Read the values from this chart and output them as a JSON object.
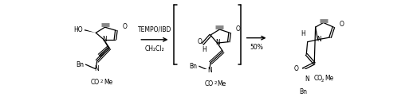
{
  "colors": {
    "line": "#000000",
    "bg": "#ffffff"
  },
  "figwidth": 5.18,
  "figheight": 1.22,
  "dpi": 100,
  "arrow1_label_top": "TEMPO/IBD",
  "arrow1_label_bot": "CH₂Cl₂",
  "arrow2_label": "50%",
  "fs_mol": 5.5,
  "fs_arrow": 5.5
}
